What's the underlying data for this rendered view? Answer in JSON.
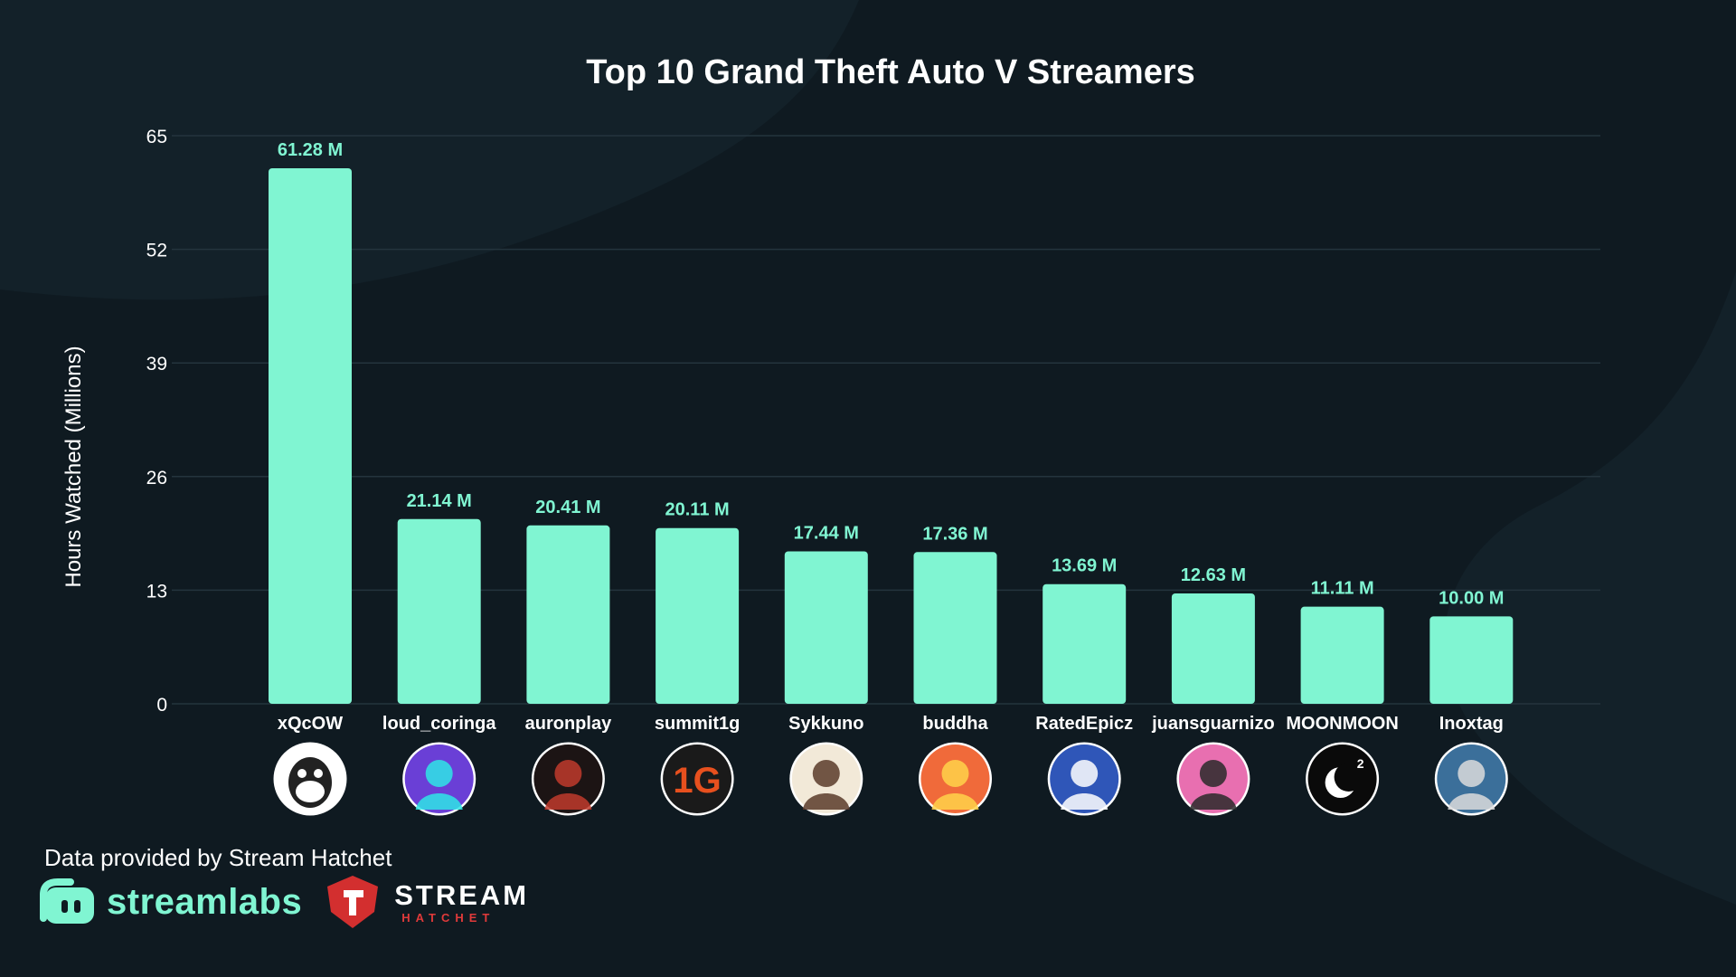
{
  "chart_data": {
    "type": "bar",
    "title": "Top 10 Grand Theft Auto V Streamers",
    "xlabel": "",
    "ylabel": "Hours Watched (Millions)",
    "ylim": [
      0,
      65
    ],
    "yticks": [
      0,
      13,
      26,
      39,
      52,
      65
    ],
    "categories": [
      "xQcOW",
      "loud_coringa",
      "auronplay",
      "summit1g",
      "Sykkuno",
      "buddha",
      "RatedEpicz",
      "juansguarnizo",
      "MOONMOON",
      "Inoxtag"
    ],
    "values": [
      61.28,
      21.14,
      20.41,
      20.11,
      17.44,
      17.36,
      13.69,
      12.63,
      11.11,
      10.0
    ],
    "value_labels": [
      "61.28 M",
      "21.14 M",
      "20.41 M",
      "20.11 M",
      "17.44 M",
      "17.36 M",
      "13.69 M",
      "12.63 M",
      "11.11 M",
      "10.00 M"
    ],
    "grid": true,
    "bar_color": "#80f5d2"
  },
  "avatars": [
    {
      "name": "gorilla-face-avatar",
      "bg": "#ffffff",
      "fg": "#222222"
    },
    {
      "name": "purple-portrait-avatar",
      "bg": "#6a3fd6",
      "fg": "#2ee6e6"
    },
    {
      "name": "bearded-cartoon-avatar",
      "bg": "#1c1414",
      "fg": "#c0392b"
    },
    {
      "name": "1g-logo-avatar",
      "bg": "#1a1a1a",
      "fg": "#e8501e"
    },
    {
      "name": "anime-boy-avatar",
      "bg": "#f2e9d8",
      "fg": "#5a3b2a"
    },
    {
      "name": "oni-mask-avatar",
      "bg": "#f06a3a",
      "fg": "#ffd24a"
    },
    {
      "name": "blue-cartoon-avatar",
      "bg": "#2f56b8",
      "fg": "#ffffff"
    },
    {
      "name": "glasses-cartoon-avatar",
      "bg": "#e86fb0",
      "fg": "#2a2a2a"
    },
    {
      "name": "crescent-moon-avatar",
      "bg": "#0a0a0a",
      "fg": "#ffffff"
    },
    {
      "name": "photo-person-avatar",
      "bg": "#3b6f9a",
      "fg": "#dcdcdc"
    }
  ],
  "avatar_marks": {
    "moon_badge": "2",
    "summit_logo": "1G"
  },
  "footer": {
    "credit": "Data provided by Stream Hatchet",
    "streamlabs_wordmark": "streamlabs",
    "streamhatchet_main": "STREAM",
    "streamhatchet_sub": "HATCHET"
  }
}
